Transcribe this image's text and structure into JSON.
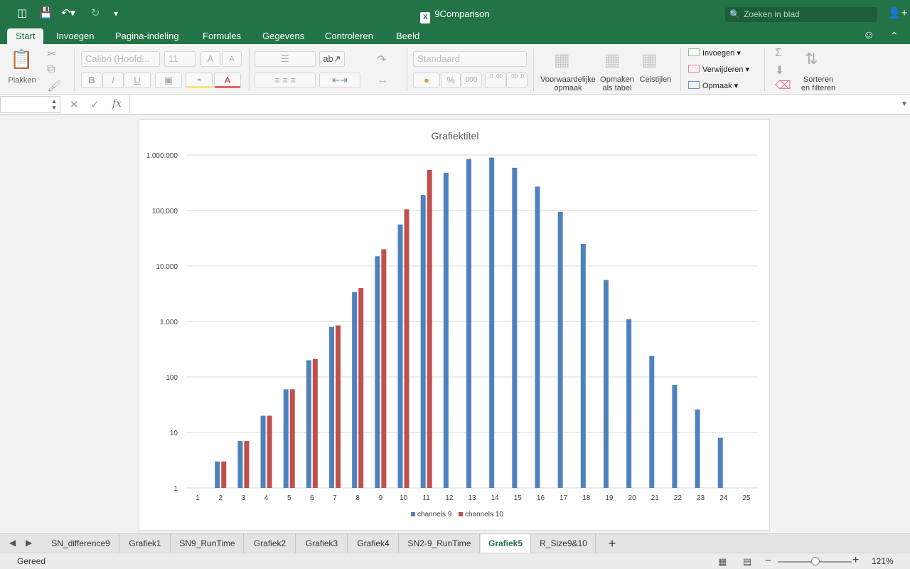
{
  "window": {
    "title": "9Comparison"
  },
  "search": {
    "placeholder": "Zoeken in blad"
  },
  "ribbon_tabs": [
    "Start",
    "Invoegen",
    "Pagina-indeling",
    "Formules",
    "Gegevens",
    "Controleren",
    "Beeld"
  ],
  "active_tab": "Start",
  "ribbon": {
    "paste_label": "Plakken",
    "font_name": "Calibri (Hoofd...",
    "font_size": "11",
    "bold": "B",
    "italic": "I",
    "underline": "U",
    "grow_font": "A",
    "shrink_font": "A",
    "font_color_letter": "A",
    "number_format": "Standaard",
    "percent": "%",
    "thousands": "000",
    "increase_decimal": ",0 ,00",
    "decrease_decimal": ",00 ,0",
    "conditional_format": [
      "Voorwaardelijke",
      "opmaak"
    ],
    "format_as_table": [
      "Opmaken",
      "als tabel"
    ],
    "cell_styles": "Celstijlen",
    "insert": "Invoegen",
    "delete": "Verwijderen",
    "format": "Opmaak",
    "sort_filter": [
      "Sorteren",
      "en filteren"
    ]
  },
  "formula_bar": {
    "fx": "fx",
    "name_box_value": "",
    "formula_value": ""
  },
  "chart_data": {
    "type": "bar",
    "title": "Grafiektitel",
    "y_scale": "log",
    "ylim": [
      1,
      1000000
    ],
    "y_tick_labels": [
      "1",
      "10",
      "100",
      "1.000",
      "10.000",
      "100.000",
      "1.000.000"
    ],
    "categories": [
      "1",
      "2",
      "3",
      "4",
      "5",
      "6",
      "7",
      "8",
      "9",
      "10",
      "11",
      "12",
      "13",
      "14",
      "15",
      "16",
      "17",
      "18",
      "19",
      "20",
      "21",
      "22",
      "23",
      "24",
      "25"
    ],
    "series": [
      {
        "name": "channels 9",
        "color": "#4f81bd",
        "values": [
          1,
          3,
          7,
          20,
          60,
          200,
          800,
          3400,
          15000,
          56000,
          190000,
          480000,
          850000,
          900000,
          590000,
          270000,
          95000,
          25000,
          5600,
          1100,
          240,
          72,
          26,
          8,
          1
        ]
      },
      {
        "name": "channels 10",
        "color": "#c0504d",
        "values": [
          1,
          3,
          7,
          20,
          60,
          210,
          850,
          4000,
          20000,
          105000,
          540000,
          null,
          null,
          null,
          null,
          null,
          null,
          null,
          null,
          null,
          null,
          null,
          null,
          null,
          null
        ]
      }
    ],
    "grid": true,
    "legend_position": "bottom"
  },
  "sheet_tabs": [
    "SN_difference9",
    "Grafiek1",
    "SN9_RunTime",
    "Grafiek2",
    "Grafiek3",
    "Grafiek4",
    "SN2-9_RunTime",
    "Grafiek5",
    "R_Size9&10"
  ],
  "active_sheet": "Grafiek5",
  "status": {
    "text": "Gereed",
    "zoom": "121%"
  }
}
